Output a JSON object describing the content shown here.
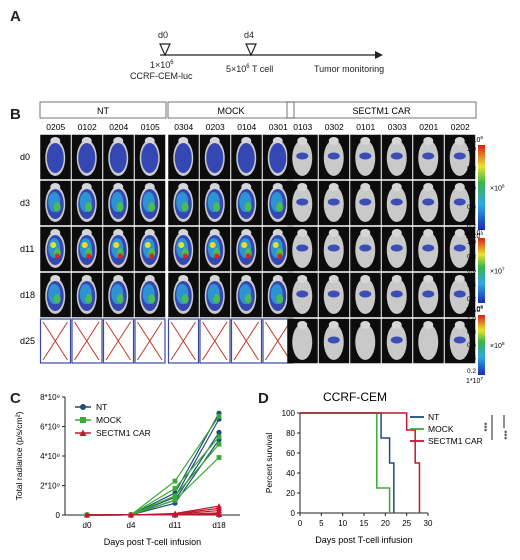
{
  "panels": {
    "A": {
      "letter": "A",
      "d0": "d0",
      "d4": "d4",
      "cells_label": "1×10",
      "cells_exp": "6",
      "cells_line": "CCRF-CEM-luc",
      "tcell_label": "5×10",
      "tcell_exp": "6",
      "tcell_suffix": " T cell",
      "monitoring": "Tumor monitoring"
    },
    "B": {
      "letter": "B",
      "groups": [
        "NT",
        "MOCK",
        "SECTM1 CAR"
      ],
      "ids_nt": [
        "0205",
        "0102",
        "0204",
        "0105"
      ],
      "ids_mock": [
        "0304",
        "0203",
        "0104",
        "0301"
      ],
      "ids_car": [
        "0103",
        "0302",
        "0101",
        "0303",
        "0201",
        "0202"
      ],
      "days": [
        "d0",
        "d3",
        "d11",
        "d18",
        "d25"
      ],
      "scales": [
        {
          "top": "1*10",
          "top_exp": "6",
          "mult": "×10",
          "mult_exp": "6",
          "bottom": "2*10",
          "bottom_exp": "4"
        },
        {
          "top": "1*10",
          "top_exp": "7",
          "mult": "×10",
          "mult_exp": "7",
          "bottom": "4*10",
          "bottom_exp": "5"
        },
        {
          "top": "1*10",
          "top_exp": "9",
          "mult": "×10",
          "mult_exp": "8",
          "bottom": "1*10",
          "bottom_exp": "7"
        }
      ],
      "scale_ticks": [
        "1.0",
        "0.8",
        "0.6",
        "0.4",
        "0.2"
      ]
    },
    "C": {
      "letter": "C"
    },
    "D": {
      "letter": "D"
    }
  },
  "chart_data": [
    {
      "type": "line",
      "panel": "C",
      "title": "",
      "xlabel": "Days post T-cell infusion",
      "ylabel": "Total radiance (p/s/cm²)",
      "categories": [
        "d0",
        "d4",
        "d11",
        "d18"
      ],
      "yticks": [
        "0",
        "2*10⁹",
        "4*10⁹",
        "6*10⁹",
        "8*10⁹"
      ],
      "ylim": [
        0,
        8000000000.0
      ],
      "legend": "top-left",
      "series": [
        {
          "name": "NT",
          "color": "#1f4e79",
          "marker": "circle",
          "lines": [
            [
              0,
              10000000.0,
              1500000000.0,
              6900000000.0
            ],
            [
              0,
              10000000.0,
              1200000000.0,
              6500000000.0
            ],
            [
              0,
              10000000.0,
              1000000000.0,
              5600000000.0
            ],
            [
              0,
              10000000.0,
              800000000.0,
              5100000000.0
            ]
          ]
        },
        {
          "name": "MOCK",
          "color": "#3aaa35",
          "marker": "square",
          "lines": [
            [
              0,
              10000000.0,
              2300000000.0,
              6700000000.0
            ],
            [
              0,
              10000000.0,
              1800000000.0,
              5300000000.0
            ],
            [
              0,
              10000000.0,
              1300000000.0,
              4800000000.0
            ],
            [
              0,
              10000000.0,
              1000000000.0,
              3900000000.0
            ]
          ]
        },
        {
          "name": "SECTM1 CAR",
          "color": "#c0182f",
          "marker": "triangle",
          "lines": [
            [
              0,
              5000000.0,
              100000000.0,
              600000000.0
            ],
            [
              0,
              5000000.0,
              80000000.0,
              450000000.0
            ],
            [
              0,
              5000000.0,
              50000000.0,
              300000000.0
            ],
            [
              0,
              5000000.0,
              30000000.0,
              150000000.0
            ],
            [
              0,
              5000000.0,
              20000000.0,
              80000000.0
            ],
            [
              0,
              5000000.0,
              10000000.0,
              30000000.0
            ]
          ]
        }
      ]
    },
    {
      "type": "line",
      "panel": "D",
      "title": "CCRF-CEM",
      "xlabel": "Days post T-cell infusion",
      "ylabel": "Percent survival",
      "xticks": [
        0,
        5,
        10,
        15,
        20,
        25,
        30
      ],
      "yticks": [
        0,
        20,
        40,
        60,
        80,
        100
      ],
      "xlim": [
        0,
        30
      ],
      "ylim": [
        0,
        100
      ],
      "legend": "top-right",
      "significance": [
        "***",
        "***"
      ],
      "series": [
        {
          "name": "NT",
          "color": "#1f4e79",
          "steps": [
            [
              0,
              100
            ],
            [
              19,
              100
            ],
            [
              19,
              75
            ],
            [
              21,
              75
            ],
            [
              21,
              50
            ],
            [
              22,
              50
            ],
            [
              22,
              0
            ]
          ]
        },
        {
          "name": "MOCK",
          "color": "#3aaa35",
          "steps": [
            [
              0,
              100
            ],
            [
              18,
              100
            ],
            [
              18,
              25
            ],
            [
              21,
              25
            ],
            [
              21,
              0
            ]
          ]
        },
        {
          "name": "SECTM1 CAR",
          "color": "#c0182f",
          "steps": [
            [
              0,
              100
            ],
            [
              25,
              100
            ],
            [
              25,
              83
            ],
            [
              27,
              83
            ],
            [
              27,
              50
            ],
            [
              28,
              50
            ],
            [
              28,
              0
            ]
          ]
        }
      ]
    }
  ]
}
